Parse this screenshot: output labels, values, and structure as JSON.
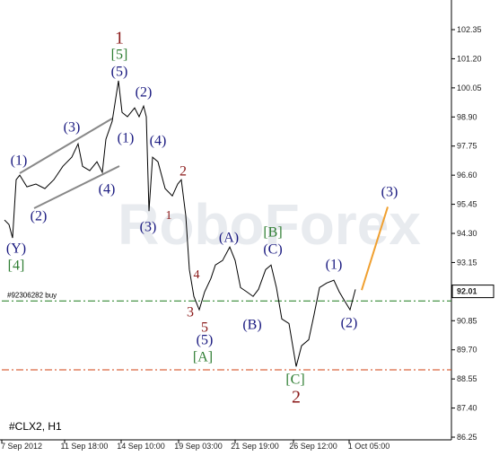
{
  "chart_data": {
    "type": "line",
    "title": "#CLX2, H1",
    "watermark": "RoboForex",
    "x": [
      3,
      8,
      12,
      16,
      20,
      28,
      38,
      48,
      58,
      68,
      78,
      85,
      90,
      98,
      106,
      112,
      116,
      123,
      130,
      134,
      140,
      148,
      153,
      158,
      161,
      164,
      168,
      174,
      182,
      190,
      196,
      200,
      205,
      209,
      214,
      220,
      226,
      233,
      238,
      246,
      254,
      260,
      266,
      273,
      280,
      286,
      294,
      300,
      306,
      312,
      320,
      328,
      334,
      342,
      348,
      354,
      362,
      370,
      376,
      382,
      388,
      394
    ],
    "series": [
      {
        "name": "#CLX2",
        "color": "#000000",
        "values": [
          94.83,
          94.65,
          94.12,
          96.42,
          96.6,
          96.14,
          96.25,
          96.07,
          96.42,
          96.95,
          97.31,
          97.84,
          96.95,
          96.78,
          97.13,
          96.71,
          98.02,
          98.73,
          100.33,
          99.08,
          98.91,
          99.26,
          98.91,
          99.33,
          98.91,
          95.18,
          97.31,
          97.13,
          96.07,
          95.78,
          96.25,
          96.42,
          95.0,
          92.87,
          91.81,
          91.28,
          91.99,
          92.52,
          93.05,
          93.23,
          93.76,
          93.23,
          92.16,
          91.99,
          91.81,
          92.09,
          92.87,
          93.05,
          92.16,
          90.92,
          90.74,
          89.04,
          89.86,
          90.1,
          91.1,
          92.16,
          92.34,
          92.45,
          91.99,
          91.63,
          91.28,
          92.09
        ]
      }
    ],
    "projection": {
      "color": "#f0a030",
      "x": [
        401,
        430
      ],
      "values": [
        92.06,
        95.35
      ]
    },
    "current_price": 92.01,
    "levels": [
      {
        "value": 91.63,
        "color": "#1a7a1a",
        "label": "#92306282 buy"
      },
      {
        "value": 88.91,
        "color": "#d04010"
      }
    ],
    "xlim": [
      0,
      501
    ],
    "xticks": [
      {
        "value": 22,
        "label": "7 Sep 2012"
      },
      {
        "value": 92,
        "label": "11 Sep 18:00"
      },
      {
        "value": 155,
        "label": "14 Sep 10:00"
      },
      {
        "value": 219,
        "label": "19 Sep 03:00"
      },
      {
        "value": 282,
        "label": "21 Sep 19:00"
      },
      {
        "value": 347,
        "label": "26 Sep 12:00"
      },
      {
        "value": 409,
        "label": "1 Oct 05:00"
      }
    ],
    "ylim": [
      86.25,
      103.45
    ],
    "yticks": [
      {
        "value": 102.35,
        "label": "102.35"
      },
      {
        "value": 101.2,
        "label": "101.20"
      },
      {
        "value": 100.05,
        "label": "100.05"
      },
      {
        "value": 98.9,
        "label": "98.90"
      },
      {
        "value": 97.75,
        "label": "97.75"
      },
      {
        "value": 96.6,
        "label": "96.60"
      },
      {
        "value": 95.45,
        "label": "95.45"
      },
      {
        "value": 94.3,
        "label": "94.30"
      },
      {
        "value": 93.15,
        "label": "93.15"
      },
      {
        "value": 90.85,
        "label": "90.85"
      },
      {
        "value": 89.7,
        "label": "89.70"
      },
      {
        "value": 88.55,
        "label": "88.55"
      },
      {
        "value": 87.4,
        "label": "87.40"
      },
      {
        "value": 86.25,
        "label": "86.25"
      }
    ],
    "annotations": [
      {
        "text": "1",
        "color": "#8b1a1a"
      },
      {
        "text": "[5]",
        "color": "#2e7d32"
      },
      {
        "text": "(5)",
        "color": "#1a1a80"
      },
      {
        "text": "(2)",
        "color": "#1a1a80"
      },
      {
        "text": "(3)",
        "color": "#1a1a80"
      },
      {
        "text": "(1)",
        "color": "#1a1a80"
      },
      {
        "text": "(4)",
        "color": "#1a1a80"
      },
      {
        "text": "(1)",
        "color": "#1a1a80"
      },
      {
        "text": "2",
        "color": "#8b1a1a"
      },
      {
        "text": "(4)",
        "color": "#1a1a80"
      },
      {
        "text": "1",
        "color": "#8b1a1a"
      },
      {
        "text": "(2)",
        "color": "#1a1a80"
      },
      {
        "text": "(3)",
        "color": "#1a1a80"
      },
      {
        "text": "[B]",
        "color": "#2e7d32"
      },
      {
        "text": "(A)",
        "color": "#1a1a80"
      },
      {
        "text": "(C)",
        "color": "#1a1a80"
      },
      {
        "text": "(Y)",
        "color": "#1a1a80"
      },
      {
        "text": "[4]",
        "color": "#2e7d32"
      },
      {
        "text": "(1)",
        "color": "#1a1a80"
      },
      {
        "text": "4",
        "color": "#8b1a1a"
      },
      {
        "text": "3",
        "color": "#8b1a1a"
      },
      {
        "text": "(B)",
        "color": "#1a1a80"
      },
      {
        "text": "(2)",
        "color": "#1a1a80"
      },
      {
        "text": "5",
        "color": "#8b1a1a"
      },
      {
        "text": "(5)",
        "color": "#1a1a80"
      },
      {
        "text": "[A]",
        "color": "#2e7d32"
      },
      {
        "text": "[C]",
        "color": "#2e7d32"
      },
      {
        "text": "2",
        "color": "#8b1a1a"
      },
      {
        "text": "(3)",
        "color": "#1a1a80"
      }
    ]
  }
}
